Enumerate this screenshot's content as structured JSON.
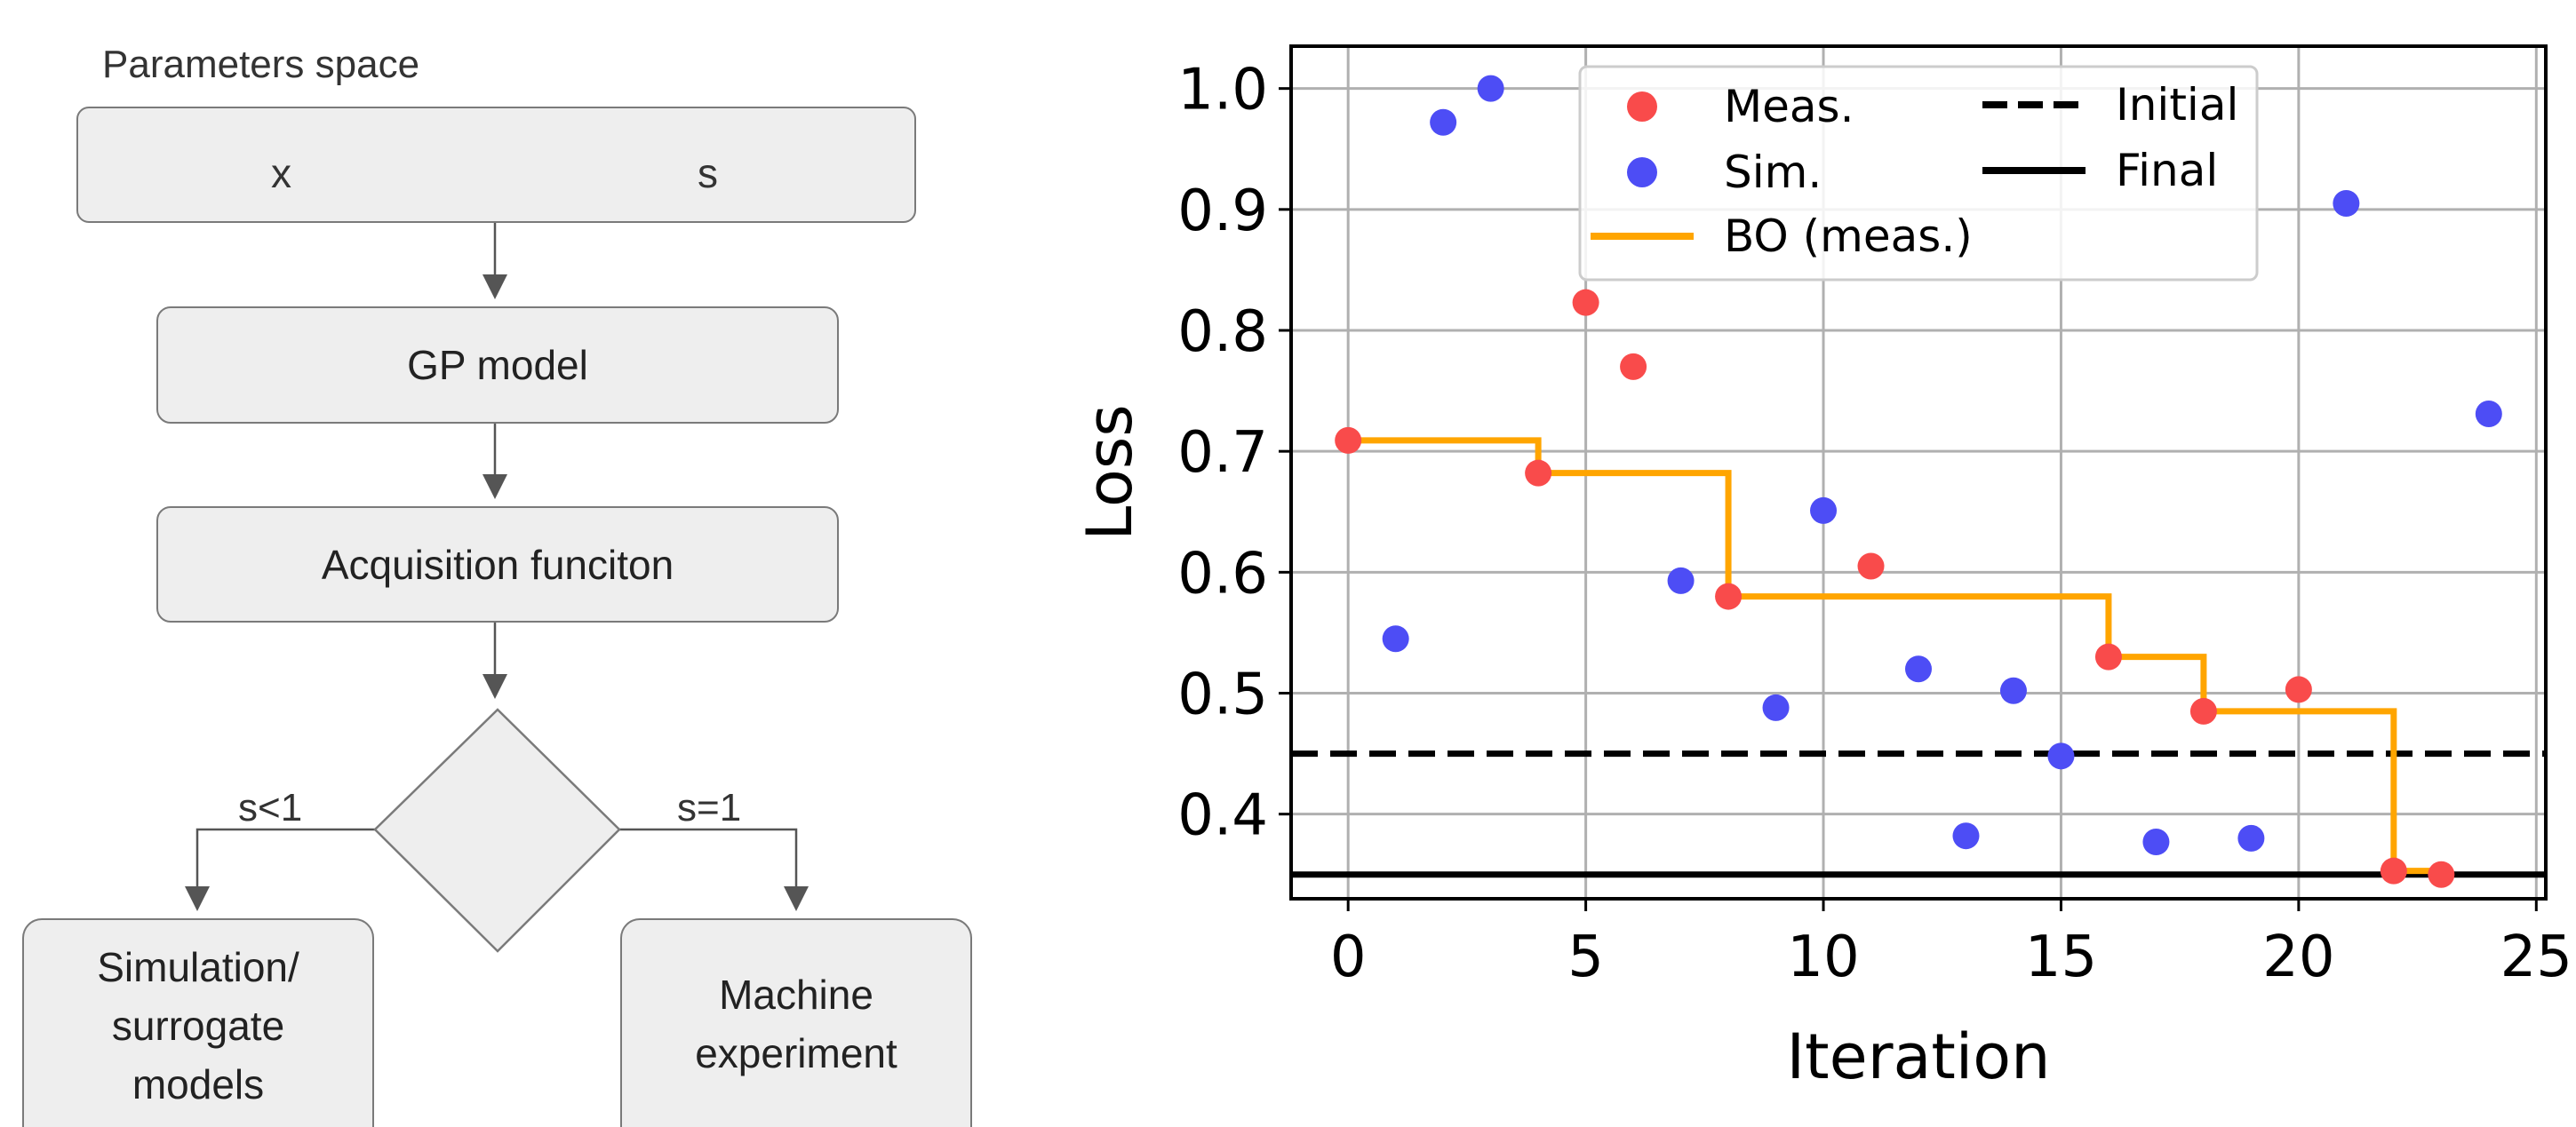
{
  "diagram": {
    "title": "Parameters space",
    "param_left": "x",
    "param_right": "s",
    "gp_model": "GP model",
    "acquisition": "Acquisition funciton",
    "branch_left": "s<1",
    "branch_right": "s=1",
    "simulation": "Simulation/\nsurrogate\nmodels",
    "machine": "Machine\nexperiment"
  },
  "chart_data": {
    "type": "scatter",
    "xlabel": "Iteration",
    "ylabel": "Loss",
    "xlim": [
      -1.2,
      25.2
    ],
    "ylim": [
      0.33,
      1.035
    ],
    "xticks": [
      "0",
      "5",
      "10",
      "15",
      "20",
      "25"
    ],
    "yticks": [
      "0.4",
      "0.5",
      "0.6",
      "0.7",
      "0.8",
      "0.9",
      "1.0"
    ],
    "grid": true,
    "legend_position": "top-center",
    "series": [
      {
        "name": "Meas.",
        "kind": "points",
        "color": "#f94b4b",
        "x": [
          0,
          4,
          5,
          6,
          8,
          11,
          16,
          18,
          20,
          22,
          23
        ],
        "y": [
          0.709,
          0.682,
          0.823,
          0.77,
          0.58,
          0.605,
          0.53,
          0.485,
          0.503,
          0.353,
          0.35
        ]
      },
      {
        "name": "Sim.",
        "kind": "points",
        "color": "#4d4df5",
        "x": [
          1,
          2,
          3,
          7,
          9,
          10,
          12,
          13,
          14,
          15,
          17,
          19,
          21,
          24
        ],
        "y": [
          0.545,
          0.972,
          1.0,
          0.593,
          0.488,
          0.651,
          0.52,
          0.382,
          0.502,
          0.448,
          0.377,
          0.38,
          0.905,
          0.731
        ]
      },
      {
        "name": "BO (meas.)",
        "kind": "step",
        "color": "#ffa500",
        "x": [
          0,
          4,
          4,
          8,
          8,
          16,
          16,
          18,
          18,
          22,
          22,
          23
        ],
        "y": [
          0.709,
          0.709,
          0.682,
          0.682,
          0.58,
          0.58,
          0.53,
          0.53,
          0.485,
          0.485,
          0.353,
          0.353
        ]
      },
      {
        "name": "Initial",
        "kind": "hline",
        "style": "dashed",
        "color": "#000000",
        "y": 0.45
      },
      {
        "name": "Final",
        "kind": "hline",
        "style": "solid",
        "color": "#000000",
        "y": 0.35
      }
    ]
  }
}
